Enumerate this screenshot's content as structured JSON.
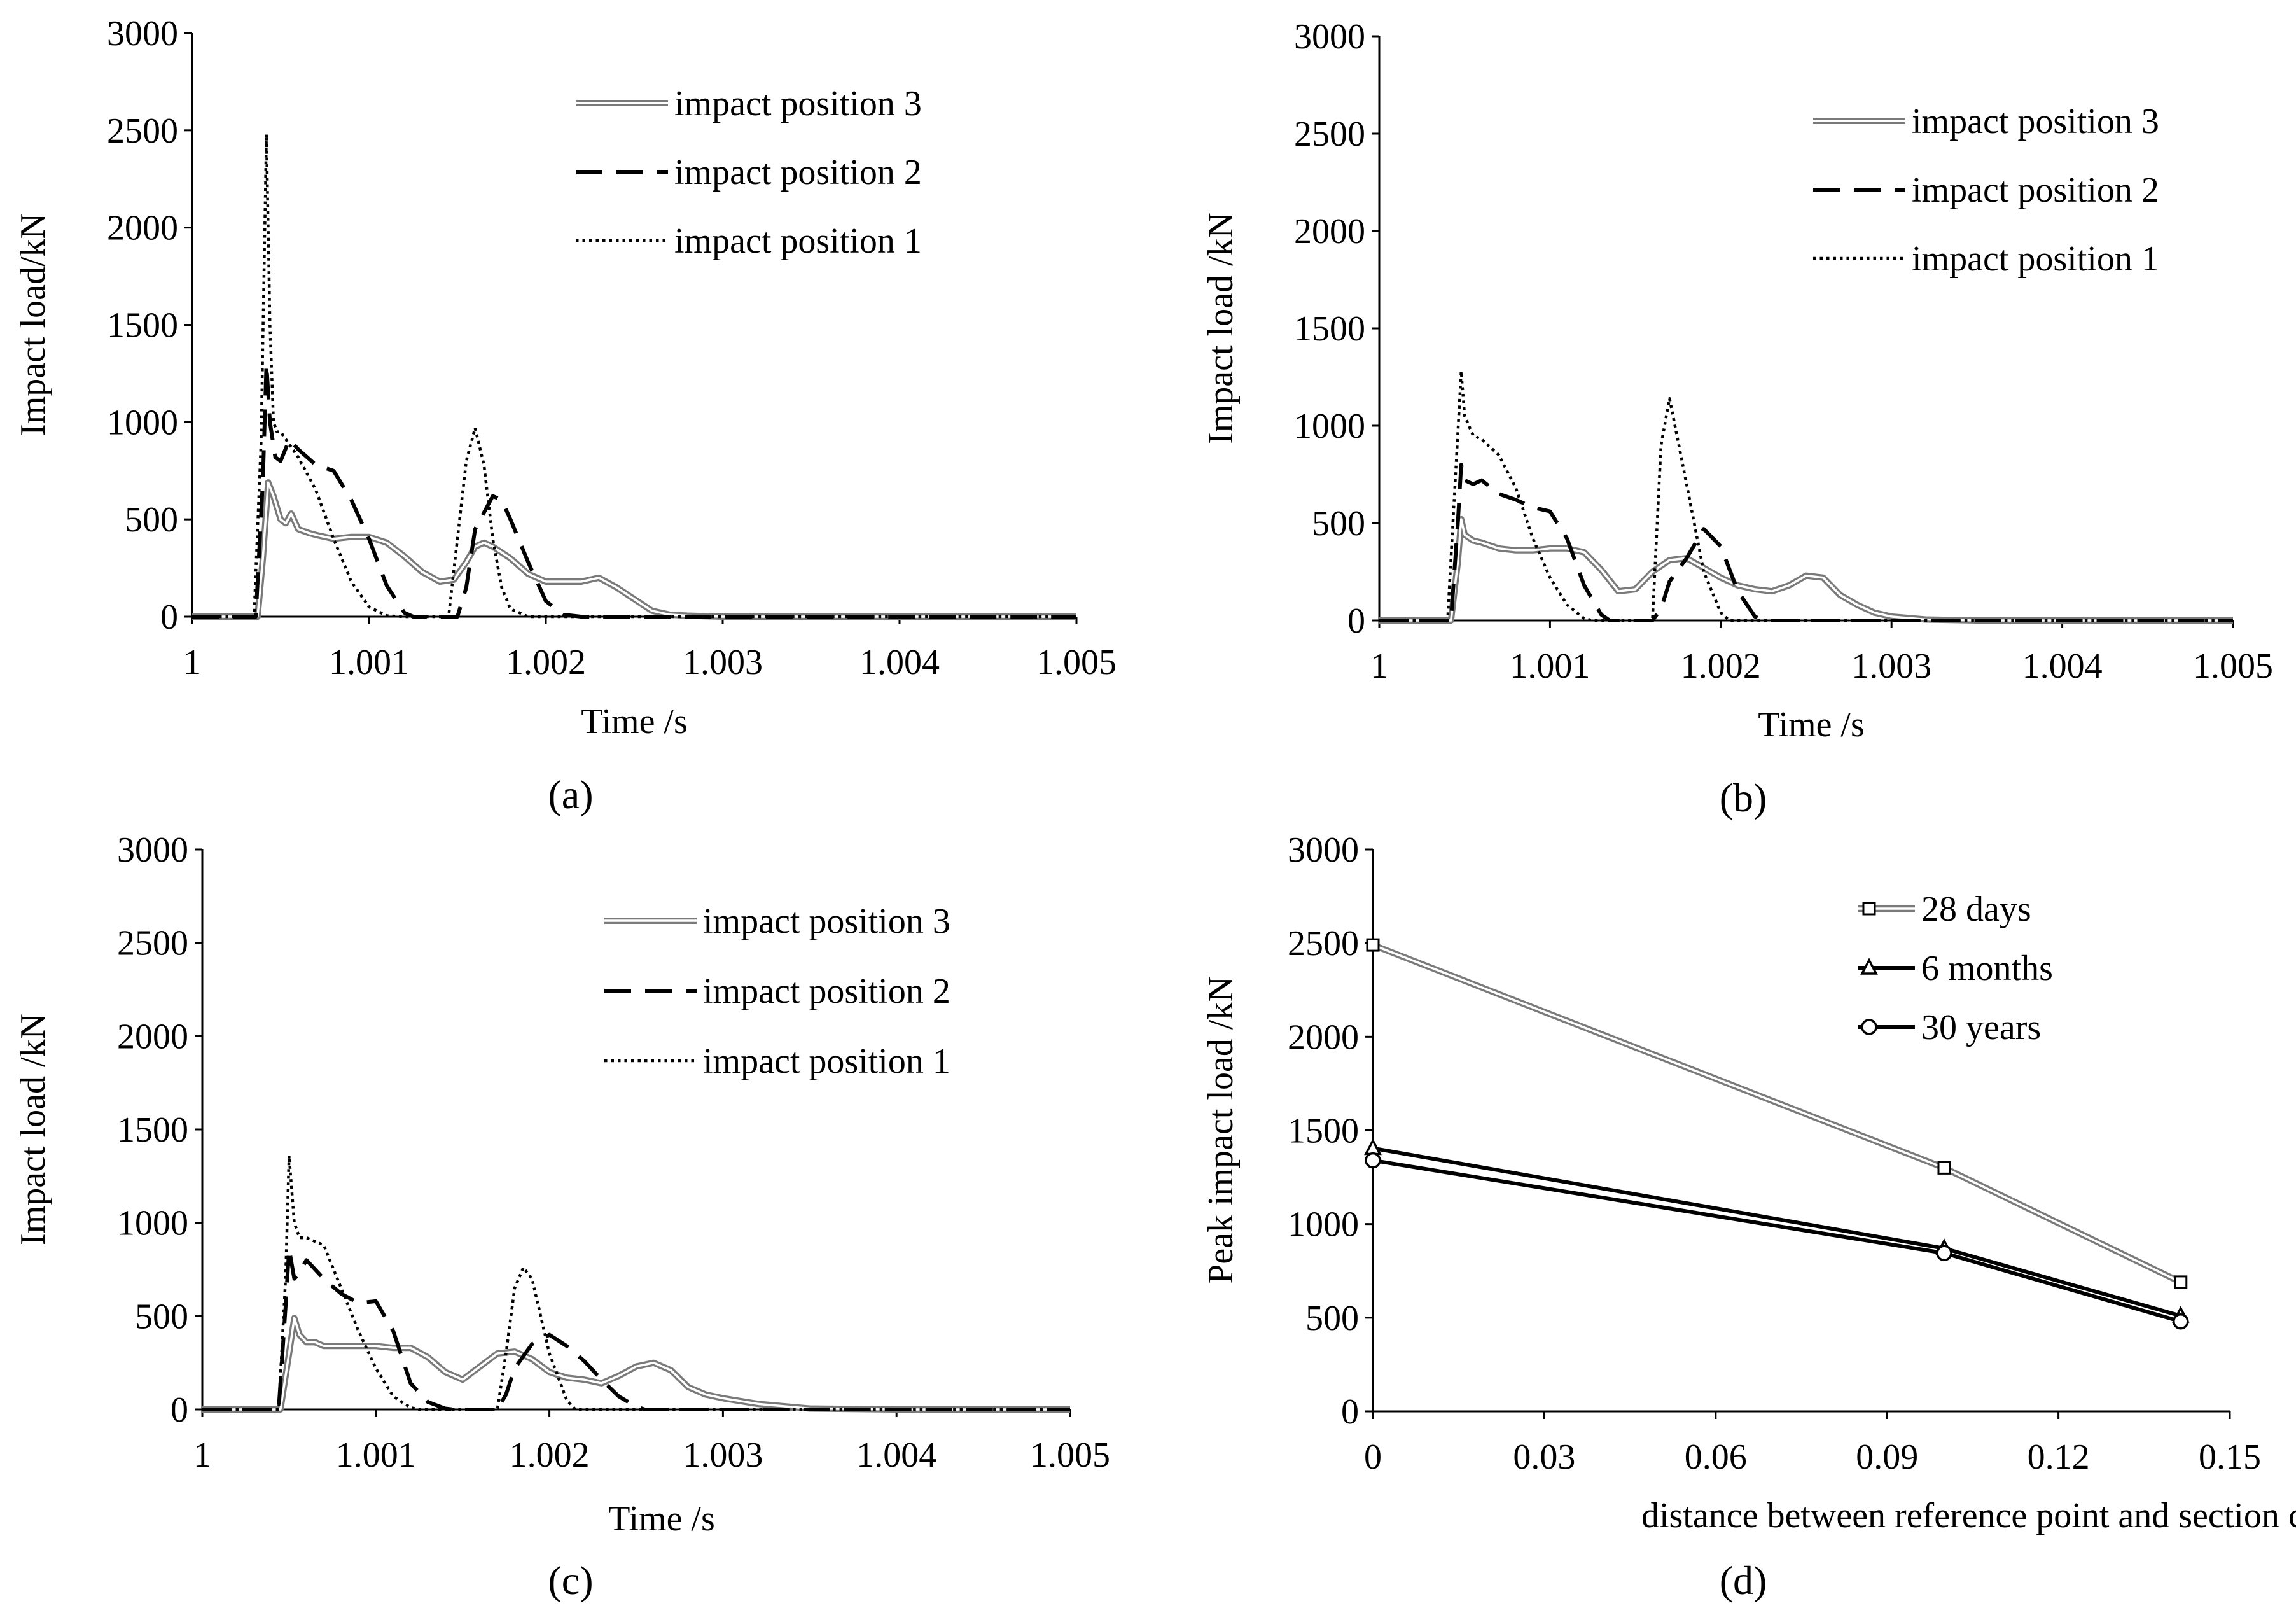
{
  "chart_data": [
    {
      "id": "a",
      "type": "line",
      "caption": "(a)",
      "xlabel": "Time /s",
      "ylabel": "Impact load/kN",
      "xlim": [
        1,
        1.005
      ],
      "ylim": [
        0,
        3000
      ],
      "xticks": [
        "1",
        "1.001",
        "1.002",
        "1.003",
        "1.004",
        "1.005"
      ],
      "yticks": [
        "0",
        "500",
        "1000",
        "1500",
        "2000",
        "2500",
        "3000"
      ],
      "legend_position": "top-right",
      "series": [
        {
          "name": "impact position 3",
          "style": "double-gray",
          "x": [
            1,
            1.00037,
            1.0004,
            1.00043,
            1.00046,
            1.0005,
            1.00053,
            1.00056,
            1.0006,
            1.00063,
            1.00066,
            1.0007,
            1.0008,
            1.0009,
            1.001,
            1.0011,
            1.0012,
            1.0013,
            1.0014,
            1.00148,
            1.00155,
            1.0016,
            1.00165,
            1.0017,
            1.0018,
            1.0019,
            1.002,
            1.0021,
            1.0022,
            1.0023,
            1.0024,
            1.0025,
            1.0026,
            1.0027,
            1.0028,
            1.003,
            1.0035,
            1.004,
            1.0045,
            1.005
          ],
          "y": [
            0,
            0,
            300,
            690,
            620,
            500,
            480,
            530,
            450,
            440,
            430,
            420,
            400,
            410,
            410,
            380,
            310,
            230,
            180,
            190,
            280,
            360,
            380,
            360,
            300,
            220,
            180,
            180,
            180,
            200,
            150,
            90,
            30,
            10,
            5,
            0,
            0,
            0,
            0,
            0
          ]
        },
        {
          "name": "impact position 2",
          "style": "long-dash",
          "x": [
            1,
            1.00036,
            1.0004,
            1.00042,
            1.00044,
            1.00047,
            1.0005,
            1.00055,
            1.0006,
            1.0007,
            1.0008,
            1.0009,
            1.001,
            1.0011,
            1.0012,
            1.00125,
            1.0015,
            1.00155,
            1.0016,
            1.0017,
            1.00175,
            1.0018,
            1.0019,
            1.002,
            1.0021,
            1.0022,
            1.005
          ],
          "y": [
            0,
            0,
            700,
            1300,
            1000,
            820,
            800,
            910,
            860,
            780,
            750,
            600,
            400,
            160,
            20,
            0,
            0,
            150,
            450,
            620,
            600,
            500,
            280,
            80,
            10,
            0,
            0
          ]
        },
        {
          "name": "impact position 1",
          "style": "dotted",
          "x": [
            1,
            1.00035,
            1.00039,
            1.00042,
            1.00044,
            1.00046,
            1.00048,
            1.0005,
            1.0006,
            1.0007,
            1.0008,
            1.0009,
            1.001,
            1.0011,
            1.0012,
            1.00145,
            1.0015,
            1.00155,
            1.0016,
            1.00165,
            1.0017,
            1.00175,
            1.0018,
            1.0019,
            1.005
          ],
          "y": [
            0,
            0,
            900,
            2480,
            1500,
            1000,
            950,
            950,
            820,
            650,
            400,
            180,
            50,
            5,
            0,
            0,
            400,
            800,
            970,
            780,
            400,
            150,
            40,
            0,
            0
          ]
        }
      ]
    },
    {
      "id": "b",
      "type": "line",
      "caption": "(b)",
      "xlabel": "Time /s",
      "ylabel": "Impact load /kN",
      "xlim": [
        1,
        1.005
      ],
      "ylim": [
        0,
        3000
      ],
      "xticks": [
        "1",
        "1.001",
        "1.002",
        "1.003",
        "1.004",
        "1.005"
      ],
      "yticks": [
        "0",
        "500",
        "1000",
        "1500",
        "2000",
        "2500",
        "3000"
      ],
      "legend_position": "top-right",
      "series": [
        {
          "name": "impact position 3",
          "style": "double-gray",
          "x": [
            1,
            1.00042,
            1.00046,
            1.00048,
            1.0005,
            1.00055,
            1.0006,
            1.0007,
            1.0008,
            1.0009,
            1.001,
            1.0011,
            1.0012,
            1.0013,
            1.0014,
            1.0015,
            1.0016,
            1.0017,
            1.0018,
            1.0019,
            1.002,
            1.0021,
            1.0022,
            1.0023,
            1.0024,
            1.0025,
            1.0026,
            1.0027,
            1.0028,
            1.0029,
            1.003,
            1.0032,
            1.0035,
            1.004,
            1.005
          ],
          "y": [
            0,
            0,
            300,
            520,
            440,
            410,
            400,
            370,
            360,
            360,
            370,
            370,
            350,
            260,
            150,
            160,
            250,
            310,
            320,
            270,
            220,
            180,
            160,
            150,
            180,
            230,
            220,
            130,
            80,
            40,
            20,
            5,
            0,
            0,
            0
          ]
        },
        {
          "name": "impact position 2",
          "style": "long-dash",
          "x": [
            1,
            1.00042,
            1.00046,
            1.00048,
            1.0005,
            1.00055,
            1.0006,
            1.0007,
            1.0008,
            1.0009,
            1.001,
            1.0011,
            1.0012,
            1.0013,
            1.00135,
            1.0016,
            1.00165,
            1.0017,
            1.0018,
            1.0019,
            1.002,
            1.0021,
            1.0022,
            1.00225,
            1.005
          ],
          "y": [
            0,
            0,
            500,
            800,
            720,
            700,
            720,
            650,
            620,
            580,
            560,
            420,
            180,
            30,
            0,
            0,
            60,
            200,
            320,
            470,
            380,
            150,
            20,
            0,
            0
          ]
        },
        {
          "name": "impact position 1",
          "style": "dotted",
          "x": [
            1,
            1.0004,
            1.00045,
            1.00048,
            1.0005,
            1.00055,
            1.0006,
            1.0007,
            1.0008,
            1.0009,
            1.001,
            1.0011,
            1.0012,
            1.00125,
            1.0016,
            1.00165,
            1.0017,
            1.0018,
            1.0019,
            1.002,
            1.00205,
            1.005
          ],
          "y": [
            0,
            0,
            800,
            1280,
            1050,
            950,
            930,
            850,
            680,
            420,
            220,
            80,
            10,
            0,
            0,
            900,
            1140,
            700,
            250,
            40,
            0,
            0
          ]
        }
      ]
    },
    {
      "id": "c",
      "type": "line",
      "caption": "(c)",
      "xlabel": "Time /s",
      "ylabel": "Impact load /kN",
      "xlim": [
        1,
        1.005
      ],
      "ylim": [
        0,
        3000
      ],
      "xticks": [
        "1",
        "1.001",
        "1.002",
        "1.003",
        "1.004",
        "1.005"
      ],
      "yticks": [
        "0",
        "500",
        "1000",
        "1500",
        "2000",
        "2500",
        "3000"
      ],
      "legend_position": "top-right",
      "series": [
        {
          "name": "impact position 3",
          "style": "double-gray",
          "x": [
            1,
            1.00045,
            1.0005,
            1.00053,
            1.00056,
            1.0006,
            1.00065,
            1.0007,
            1.0008,
            1.0009,
            1.001,
            1.0011,
            1.0012,
            1.0013,
            1.0014,
            1.0015,
            1.0016,
            1.0017,
            1.0018,
            1.0019,
            1.002,
            1.0021,
            1.0022,
            1.0023,
            1.0024,
            1.0025,
            1.0026,
            1.0027,
            1.0028,
            1.0029,
            1.003,
            1.0032,
            1.0035,
            1.004,
            1.005
          ],
          "y": [
            0,
            0,
            300,
            490,
            400,
            360,
            360,
            340,
            340,
            340,
            340,
            330,
            330,
            280,
            200,
            160,
            230,
            300,
            310,
            270,
            200,
            170,
            160,
            140,
            180,
            230,
            250,
            210,
            120,
            80,
            60,
            30,
            5,
            0,
            0
          ]
        },
        {
          "name": "impact position 2",
          "style": "long-dash",
          "x": [
            1,
            1.00044,
            1.00048,
            1.0005,
            1.00053,
            1.00055,
            1.0006,
            1.0007,
            1.0008,
            1.0009,
            1.001,
            1.0011,
            1.0012,
            1.0013,
            1.0014,
            1.00145,
            1.0017,
            1.00175,
            1.0018,
            1.0019,
            1.002,
            1.0021,
            1.0022,
            1.0023,
            1.0024,
            1.0025,
            1.00255,
            1.005
          ],
          "y": [
            0,
            0,
            550,
            860,
            700,
            720,
            800,
            700,
            620,
            570,
            580,
            420,
            140,
            40,
            5,
            0,
            0,
            80,
            220,
            350,
            400,
            340,
            260,
            160,
            70,
            15,
            0,
            0
          ]
        },
        {
          "name": "impact position 1",
          "style": "dotted",
          "x": [
            1,
            1.00044,
            1.00048,
            1.0005,
            1.00053,
            1.00056,
            1.0006,
            1.0007,
            1.0008,
            1.0009,
            1.001,
            1.0011,
            1.0012,
            1.00125,
            1.0017,
            1.00175,
            1.0018,
            1.00185,
            1.0019,
            1.002,
            1.0021,
            1.00215,
            1.005
          ],
          "y": [
            0,
            0,
            700,
            1360,
            1000,
            920,
            920,
            880,
            650,
            420,
            220,
            70,
            10,
            0,
            0,
            300,
            650,
            760,
            700,
            300,
            50,
            0,
            0
          ]
        }
      ]
    },
    {
      "id": "d",
      "type": "line",
      "caption": "(d)",
      "xlabel": "distance between reference point and section center /m",
      "ylabel": "Peak impact load /kN",
      "xlim": [
        0,
        0.15
      ],
      "ylim": [
        0,
        3000
      ],
      "xticks": [
        "0",
        "0.03",
        "0.06",
        "0.09",
        "0.12",
        "0.15"
      ],
      "yticks": [
        "0",
        "500",
        "1000",
        "1500",
        "2000",
        "2500",
        "3000"
      ],
      "legend_position": "top-right",
      "series": [
        {
          "name": "28 days",
          "marker": "square",
          "style": "double-gray",
          "x": [
            0,
            0.1,
            0.1414
          ],
          "y": [
            2490,
            1300,
            690
          ]
        },
        {
          "name": "6 months",
          "marker": "triangle",
          "style": "solid-black",
          "x": [
            0,
            0.1,
            0.1414
          ],
          "y": [
            1405,
            870,
            510
          ]
        },
        {
          "name": "30 years",
          "marker": "circle",
          "style": "solid-black",
          "x": [
            0,
            0.1,
            0.1414
          ],
          "y": [
            1340,
            845,
            480
          ]
        }
      ]
    }
  ]
}
